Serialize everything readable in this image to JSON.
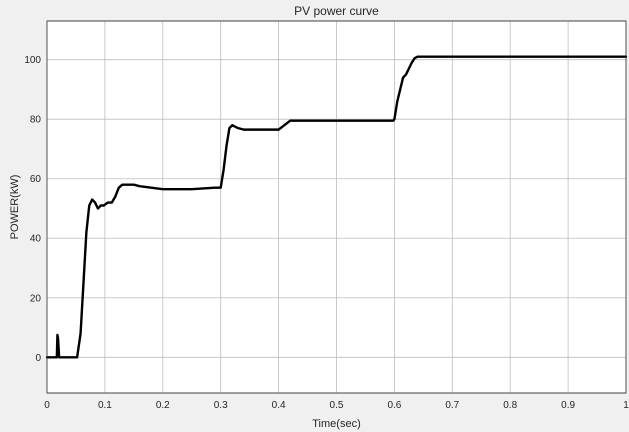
{
  "chart_data": {
    "type": "line",
    "title": "PV power curve",
    "xlabel": "Time(sec)",
    "ylabel": "POWER(kW)",
    "xlim": [
      0,
      1
    ],
    "ylim": [
      -12,
      113
    ],
    "xticks": [
      0,
      0.1,
      0.2,
      0.3,
      0.4,
      0.5,
      0.6,
      0.7,
      0.8,
      0.9,
      1
    ],
    "xtick_labels": [
      "0",
      "0.1",
      "0.2",
      "0.3",
      "0.4",
      "0.5",
      "0.6",
      "0.7",
      "0.8",
      "0.9",
      "1"
    ],
    "yticks": [
      0,
      20,
      40,
      60,
      80,
      100
    ],
    "ytick_labels": [
      "0",
      "20",
      "40",
      "60",
      "80",
      "100"
    ],
    "grid": true,
    "colors": {
      "line": "#000000",
      "background": "#ffffff",
      "grid": "#bdbdbd",
      "figure": "#f0f0f0"
    },
    "series": [
      {
        "x": [
          0,
          0.017,
          0.018,
          0.019,
          0.021,
          0.023,
          0.03,
          0.045,
          0.052,
          0.058,
          0.063,
          0.068,
          0.073,
          0.078,
          0.083,
          0.088,
          0.093,
          0.098,
          0.105,
          0.112,
          0.118,
          0.124,
          0.13,
          0.14,
          0.15,
          0.16,
          0.18,
          0.2,
          0.25,
          0.29,
          0.3,
          0.305,
          0.31,
          0.315,
          0.32,
          0.325,
          0.33,
          0.34,
          0.35,
          0.38,
          0.4,
          0.41,
          0.42,
          0.45,
          0.5,
          0.55,
          0.598,
          0.6,
          0.605,
          0.61,
          0.615,
          0.62,
          0.625,
          0.63,
          0.635,
          0.64,
          0.7,
          0.8,
          0.9,
          1.0
        ],
        "y": [
          0,
          0,
          7.5,
          6.5,
          0,
          0,
          0,
          0,
          0,
          8,
          25,
          42,
          51,
          53,
          52,
          50,
          51,
          51,
          52,
          52,
          54,
          57,
          58,
          58,
          58,
          57.5,
          57,
          56.5,
          56.5,
          57,
          57,
          63,
          71,
          77,
          78,
          77.5,
          77,
          76.5,
          76.5,
          76.5,
          76.5,
          78,
          79.5,
          79.5,
          79.5,
          79.5,
          79.5,
          80,
          86,
          90,
          94,
          95,
          97,
          99,
          100.5,
          101,
          101,
          101,
          101,
          101
        ]
      }
    ]
  }
}
